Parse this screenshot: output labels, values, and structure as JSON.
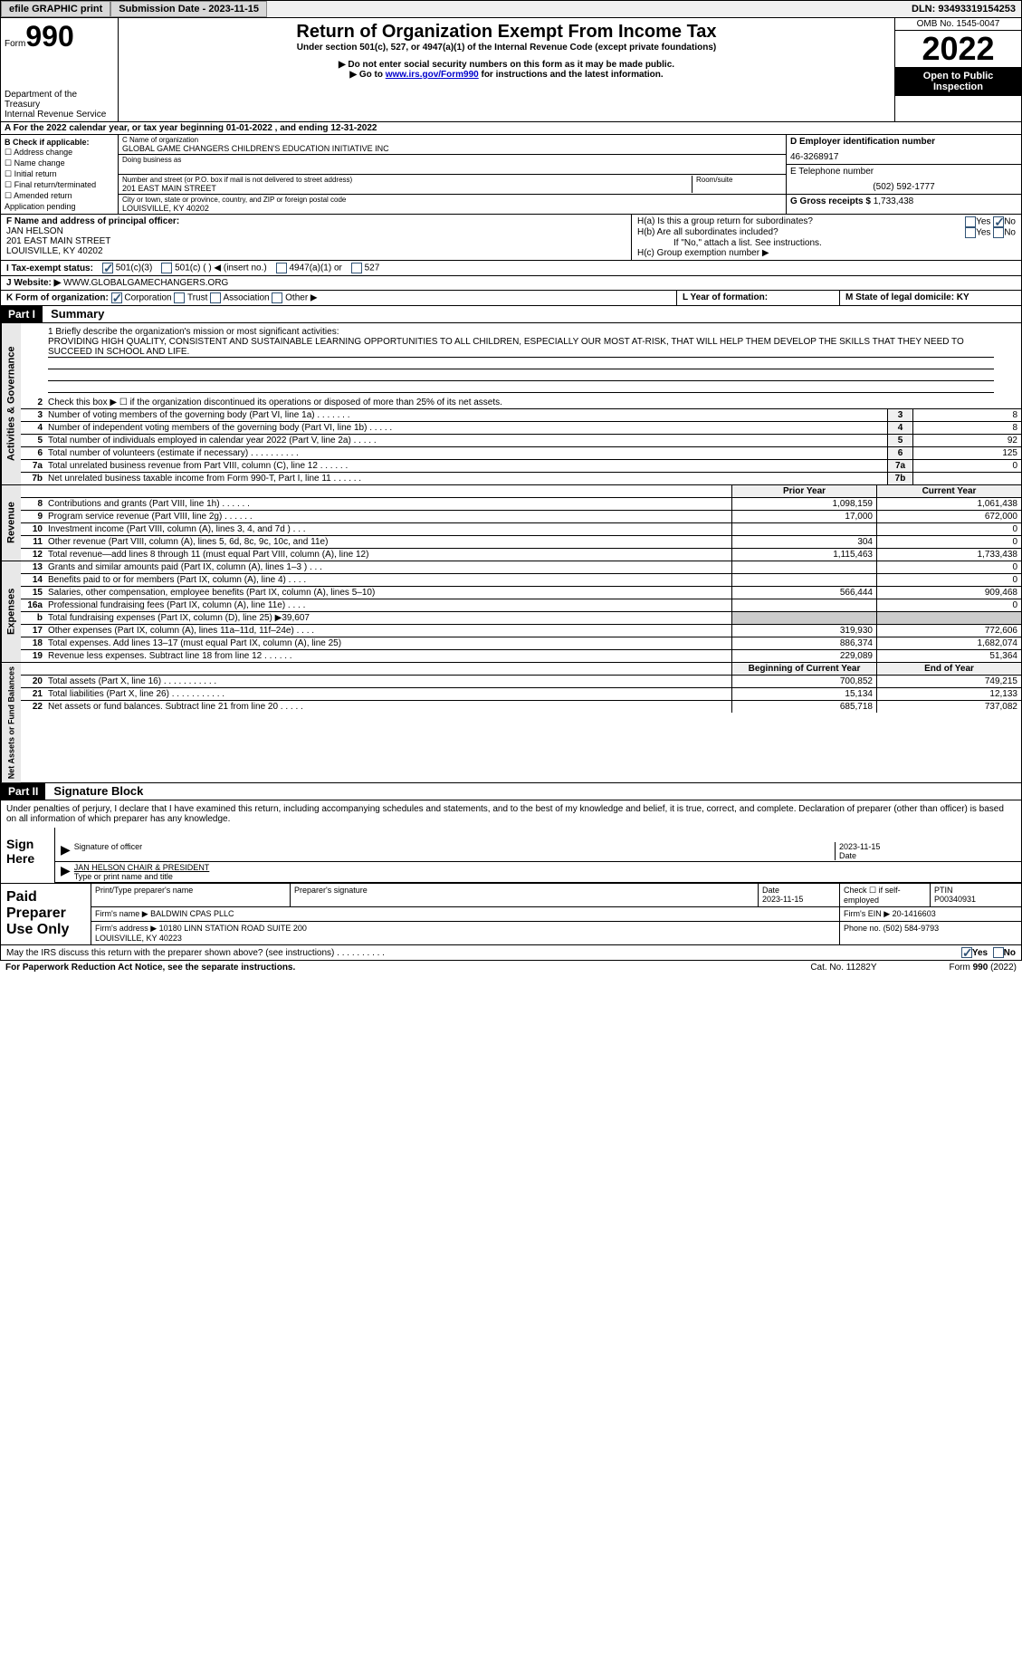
{
  "topbar": {
    "efile": "efile GRAPHIC print",
    "submission": "Submission Date - 2023-11-15",
    "dln": "DLN: 93493319154253"
  },
  "header": {
    "form_label": "Form",
    "form_num": "990",
    "dept": "Department of the Treasury\nInternal Revenue Service",
    "title": "Return of Organization Exempt From Income Tax",
    "sub1": "Under section 501(c), 527, or 4947(a)(1) of the Internal Revenue Code (except private foundations)",
    "sub2": "▶ Do not enter social security numbers on this form as it may be made public.",
    "sub3": "▶ Go to www.irs.gov/Form990 for instructions and the latest information.",
    "omb": "OMB No. 1545-0047",
    "year": "2022",
    "public": "Open to Public Inspection"
  },
  "rowA": "A For the 2022 calendar year, or tax year beginning 01-01-2022   , and ending 12-31-2022",
  "colB": {
    "label": "B Check if applicable:",
    "items": [
      "☐ Address change",
      "☐ Name change",
      "☐ Initial return",
      "☐ Final return/terminated",
      "☐ Amended return",
      "  Application pending"
    ]
  },
  "orgC": {
    "name_lbl": "C Name of organization",
    "name": "GLOBAL GAME CHANGERS CHILDREN'S EDUCATION INITIATIVE INC",
    "dba_lbl": "Doing business as",
    "addr_lbl": "Number and street (or P.O. box if mail is not delivered to street address)",
    "addr": "201 EAST MAIN STREET",
    "room_lbl": "Room/suite",
    "city_lbl": "City or town, state or province, country, and ZIP or foreign postal code",
    "city": "LOUISVILLE, KY  40202"
  },
  "colRight": {
    "ein_lbl": "D Employer identification number",
    "ein": "46-3268917",
    "tel_lbl": "E Telephone number",
    "tel": "(502) 592-1777",
    "gross_lbl": "G Gross receipts $",
    "gross": "1,733,438"
  },
  "sectionF": {
    "label": "F Name and address of principal officer:",
    "name": "JAN HELSON",
    "addr1": "201 EAST MAIN STREET",
    "addr2": "LOUISVILLE, KY  40202"
  },
  "sectionH": {
    "ha": "H(a)  Is this a group return for subordinates?",
    "hb": "H(b)  Are all subordinates included?",
    "hb_note": "If \"No,\" attach a list. See instructions.",
    "hc": "H(c)  Group exemption number ▶",
    "yes": "Yes",
    "no": "No"
  },
  "taxExempt": {
    "label": "I   Tax-exempt status:",
    "opt1": "501(c)(3)",
    "opt2": "501(c) (  ) ◀ (insert no.)",
    "opt3": "4947(a)(1) or",
    "opt4": "527"
  },
  "website": {
    "label": "J   Website: ▶",
    "url": "WWW.GLOBALGAMECHANGERS.ORG"
  },
  "formOrg": {
    "k": "K Form of organization:",
    "corp": "Corporation",
    "trust": "Trust",
    "assoc": "Association",
    "other": "Other ▶",
    "l": "L Year of formation:",
    "m": "M State of legal domicile: KY"
  },
  "part1": {
    "header": "Part I",
    "title": "Summary"
  },
  "mission": {
    "label": "1   Briefly describe the organization's mission or most significant activities:",
    "text": "PROVIDING HIGH QUALITY, CONSISTENT AND SUSTAINABLE LEARNING OPPORTUNITIES TO ALL CHILDREN, ESPECIALLY OUR MOST AT-RISK, THAT WILL HELP THEM DEVELOP THE SKILLS THAT THEY NEED TO SUCCEED IN SCHOOL AND LIFE."
  },
  "line2": "Check this box ▶ ☐  if the organization discontinued its operations or disposed of more than 25% of its net assets.",
  "lines": {
    "3": {
      "text": "Number of voting members of the governing body (Part VI, line 1a)  .   .   .   .   .   .   .",
      "box": "3",
      "val": "8"
    },
    "4": {
      "text": "Number of independent voting members of the governing body (Part VI, line 1b)  .   .   .   .   .",
      "box": "4",
      "val": "8"
    },
    "5": {
      "text": "Total number of individuals employed in calendar year 2022 (Part V, line 2a)  .   .   .   .   .",
      "box": "5",
      "val": "92"
    },
    "6": {
      "text": "Total number of volunteers (estimate if necessary)   .   .   .   .   .   .   .   .   .   .",
      "box": "6",
      "val": "125"
    },
    "7a": {
      "text": "Total unrelated business revenue from Part VIII, column (C), line 12  .   .   .   .   .   .",
      "box": "7a",
      "val": "0"
    },
    "7b": {
      "text": "Net unrelated business taxable income from Form 990-T, Part I, line 11  .   .   .   .   .   .",
      "box": "7b",
      "val": ""
    }
  },
  "cols": {
    "prior": "Prior Year",
    "current": "Current Year"
  },
  "revenue_label": "Revenue",
  "revenue": {
    "8": {
      "text": "Contributions and grants (Part VIII, line 1h)  .   .   .   .   .   .",
      "prior": "1,098,159",
      "current": "1,061,438"
    },
    "9": {
      "text": "Program service revenue (Part VIII, line 2g)  .   .   .   .   .   .",
      "prior": "17,000",
      "current": "672,000"
    },
    "10": {
      "text": "Investment income (Part VIII, column (A), lines 3, 4, and 7d )  .   .   .",
      "prior": "",
      "current": "0"
    },
    "11": {
      "text": "Other revenue (Part VIII, column (A), lines 5, 6d, 8c, 9c, 10c, and 11e)",
      "prior": "304",
      "current": "0"
    },
    "12": {
      "text": "Total revenue—add lines 8 through 11 (must equal Part VIII, column (A), line 12)",
      "prior": "1,115,463",
      "current": "1,733,438"
    }
  },
  "expenses_label": "Expenses",
  "expenses": {
    "13": {
      "text": "Grants and similar amounts paid (Part IX, column (A), lines 1–3 )  .   .   .",
      "prior": "",
      "current": "0"
    },
    "14": {
      "text": "Benefits paid to or for members (Part IX, column (A), line 4)  .   .   .   .",
      "prior": "",
      "current": "0"
    },
    "15": {
      "text": "Salaries, other compensation, employee benefits (Part IX, column (A), lines 5–10)",
      "prior": "566,444",
      "current": "909,468"
    },
    "16a": {
      "text": "Professional fundraising fees (Part IX, column (A), line 11e)  .   .   .   .",
      "prior": "",
      "current": "0"
    },
    "16b": {
      "text": "Total fundraising expenses (Part IX, column (D), line 25) ▶39,607",
      "prior": "shaded",
      "current": "shaded"
    },
    "17": {
      "text": "Other expenses (Part IX, column (A), lines 11a–11d, 11f–24e)  .   .   .   .",
      "prior": "319,930",
      "current": "772,606"
    },
    "18": {
      "text": "Total expenses. Add lines 13–17 (must equal Part IX, column (A), line 25)",
      "prior": "886,374",
      "current": "1,682,074"
    },
    "19": {
      "text": "Revenue less expenses. Subtract line 18 from line 12  .   .   .   .   .   .",
      "prior": "229,089",
      "current": "51,364"
    }
  },
  "netassets_label": "Net Assets or Fund Balances",
  "cols2": {
    "begin": "Beginning of Current Year",
    "end": "End of Year"
  },
  "netassets": {
    "20": {
      "text": "Total assets (Part X, line 16)  .   .   .   .   .   .   .   .   .   .   .",
      "prior": "700,852",
      "current": "749,215"
    },
    "21": {
      "text": "Total liabilities (Part X, line 26)  .   .   .   .   .   .   .   .   .   .   .",
      "prior": "15,134",
      "current": "12,133"
    },
    "22": {
      "text": "Net assets or fund balances. Subtract line 21 from line 20  .   .   .   .   .",
      "prior": "685,718",
      "current": "737,082"
    }
  },
  "part2": {
    "header": "Part II",
    "title": "Signature Block"
  },
  "penalties": "Under penalties of perjury, I declare that I have examined this return, including accompanying schedules and statements, and to the best of my knowledge and belief, it is true, correct, and complete. Declaration of preparer (other than officer) is based on all information of which preparer has any knowledge.",
  "sign": {
    "here": "Sign Here",
    "sig_officer": "Signature of officer",
    "date": "Date",
    "sig_date": "2023-11-15",
    "name": "JAN HELSON CHAIR & PRESIDENT",
    "name_lbl": "Type or print name and title"
  },
  "paid": {
    "label": "Paid Preparer Use Only",
    "print_lbl": "Print/Type preparer's name",
    "sig_lbl": "Preparer's signature",
    "date_lbl": "Date",
    "date": "2023-11-15",
    "check_lbl": "Check ☐ if self-employed",
    "ptin_lbl": "PTIN",
    "ptin": "P00340931",
    "firm_name_lbl": "Firm's name    ▶",
    "firm_name": "BALDWIN CPAS PLLC",
    "firm_ein_lbl": "Firm's EIN ▶",
    "firm_ein": "20-1416603",
    "firm_addr_lbl": "Firm's address ▶",
    "firm_addr": "10180 LINN STATION ROAD SUITE 200\nLOUISVILLE, KY  40223",
    "phone_lbl": "Phone no.",
    "phone": "(502) 584-9793"
  },
  "footer": {
    "irs_discuss": "May the IRS discuss this return with the preparer shown above? (see instructions)  .   .   .   .   .   .   .   .   .   .",
    "yes": "Yes",
    "no": "No",
    "paperwork": "For Paperwork Reduction Act Notice, see the separate instructions.",
    "cat": "Cat. No. 11282Y",
    "form": "Form 990 (2022)"
  },
  "vert": {
    "act_gov": "Activities & Governance"
  }
}
